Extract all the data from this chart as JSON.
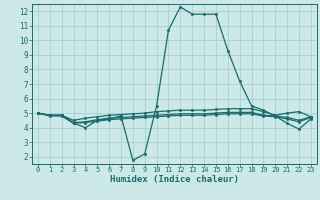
{
  "xlabel": "Humidex (Indice chaleur)",
  "bg_color": "#cce8e8",
  "grid_color": "#aacfcf",
  "line_color": "#1a6b6b",
  "xlim": [
    -0.5,
    23.5
  ],
  "ylim": [
    1.5,
    12.5
  ],
  "xticks": [
    0,
    1,
    2,
    3,
    4,
    5,
    6,
    7,
    8,
    9,
    10,
    11,
    12,
    13,
    14,
    15,
    16,
    17,
    18,
    19,
    20,
    21,
    22,
    23
  ],
  "yticks": [
    2,
    3,
    4,
    5,
    6,
    7,
    8,
    9,
    10,
    11,
    12
  ],
  "curves": [
    {
      "x": [
        0,
        1,
        2,
        3,
        4,
        5,
        6,
        7,
        8,
        9,
        10,
        11,
        12,
        13,
        14,
        15,
        16,
        17,
        18,
        19,
        20,
        21,
        22,
        23
      ],
      "y": [
        5.0,
        4.8,
        4.8,
        4.3,
        4.0,
        4.5,
        4.6,
        4.8,
        1.75,
        2.2,
        5.5,
        10.7,
        12.3,
        11.8,
        11.8,
        11.8,
        9.3,
        7.2,
        5.5,
        5.2,
        4.8,
        4.3,
        3.9,
        4.6
      ]
    },
    {
      "x": [
        0,
        1,
        2,
        3,
        4,
        5,
        6,
        7,
        8,
        9,
        10,
        11,
        12,
        13,
        14,
        15,
        16,
        17,
        18,
        19,
        20,
        21,
        22,
        23
      ],
      "y": [
        5.0,
        4.85,
        4.85,
        4.5,
        4.65,
        4.75,
        4.85,
        4.9,
        4.95,
        5.0,
        5.1,
        5.15,
        5.2,
        5.2,
        5.2,
        5.25,
        5.3,
        5.3,
        5.3,
        5.1,
        4.85,
        5.0,
        5.1,
        4.75
      ]
    },
    {
      "x": [
        0,
        1,
        2,
        3,
        4,
        5,
        6,
        7,
        8,
        9,
        10,
        11,
        12,
        13,
        14,
        15,
        16,
        17,
        18,
        19,
        20,
        21,
        22,
        23
      ],
      "y": [
        5.0,
        4.85,
        4.85,
        4.35,
        4.4,
        4.55,
        4.65,
        4.7,
        4.75,
        4.8,
        4.85,
        4.9,
        4.95,
        4.95,
        4.95,
        5.0,
        5.05,
        5.05,
        5.05,
        4.85,
        4.8,
        4.7,
        4.5,
        4.75
      ]
    },
    {
      "x": [
        0,
        1,
        2,
        3,
        4,
        5,
        6,
        7,
        8,
        9,
        10,
        11,
        12,
        13,
        14,
        15,
        16,
        17,
        18,
        19,
        20,
        21,
        22,
        23
      ],
      "y": [
        5.0,
        4.85,
        4.85,
        4.3,
        4.35,
        4.45,
        4.55,
        4.6,
        4.65,
        4.7,
        4.75,
        4.8,
        4.85,
        4.85,
        4.85,
        4.9,
        4.95,
        4.95,
        4.95,
        4.8,
        4.75,
        4.6,
        4.4,
        4.7
      ]
    }
  ]
}
